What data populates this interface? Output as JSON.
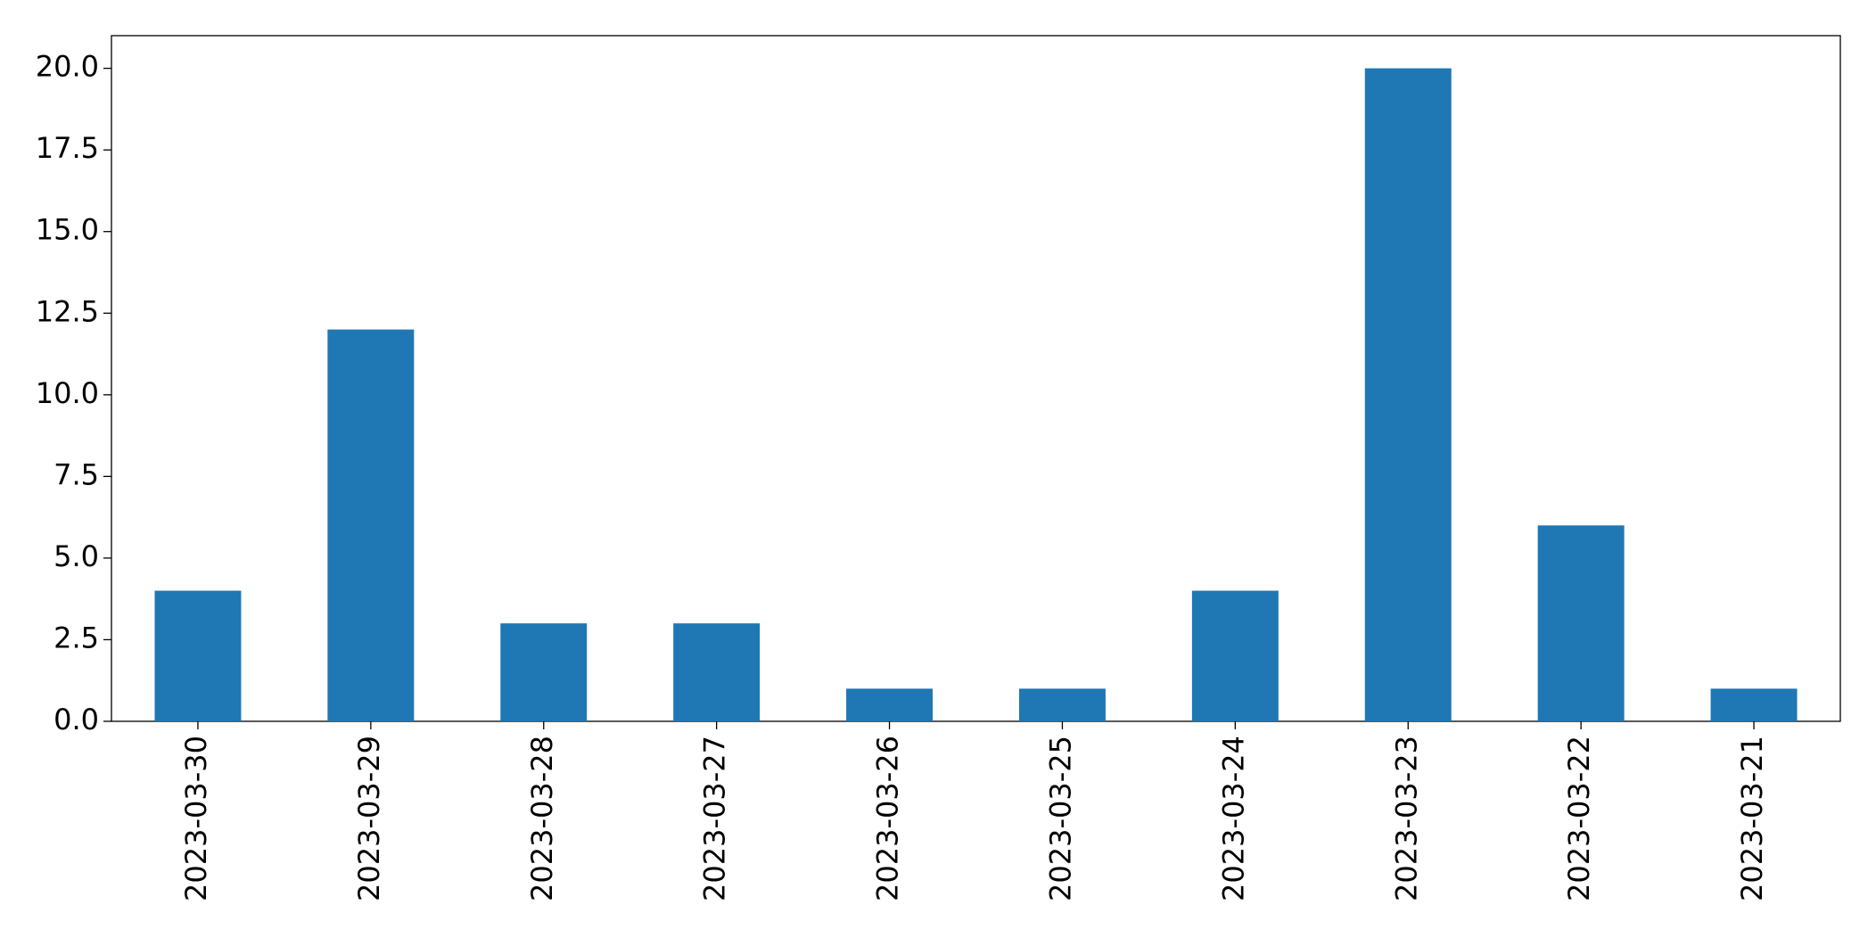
{
  "chart_data": {
    "type": "bar",
    "categories": [
      "2023-03-30",
      "2023-03-29",
      "2023-03-28",
      "2023-03-27",
      "2023-03-26",
      "2023-03-25",
      "2023-03-24",
      "2023-03-23",
      "2023-03-22",
      "2023-03-21"
    ],
    "values": [
      4,
      12,
      3,
      3,
      1,
      1,
      4,
      20,
      6,
      1
    ],
    "color": "#1f77b4",
    "ylim": [
      0,
      21
    ],
    "yticks": [
      {
        "value": 0,
        "label": "0.0"
      },
      {
        "value": 2.5,
        "label": "2.5"
      },
      {
        "value": 5,
        "label": "5.0"
      },
      {
        "value": 7.5,
        "label": "7.5"
      },
      {
        "value": 10,
        "label": "10.0"
      },
      {
        "value": 12.5,
        "label": "12.5"
      },
      {
        "value": 15,
        "label": "15.0"
      },
      {
        "value": 17.5,
        "label": "17.5"
      },
      {
        "value": 20,
        "label": "20.0"
      }
    ],
    "grid": false
  }
}
